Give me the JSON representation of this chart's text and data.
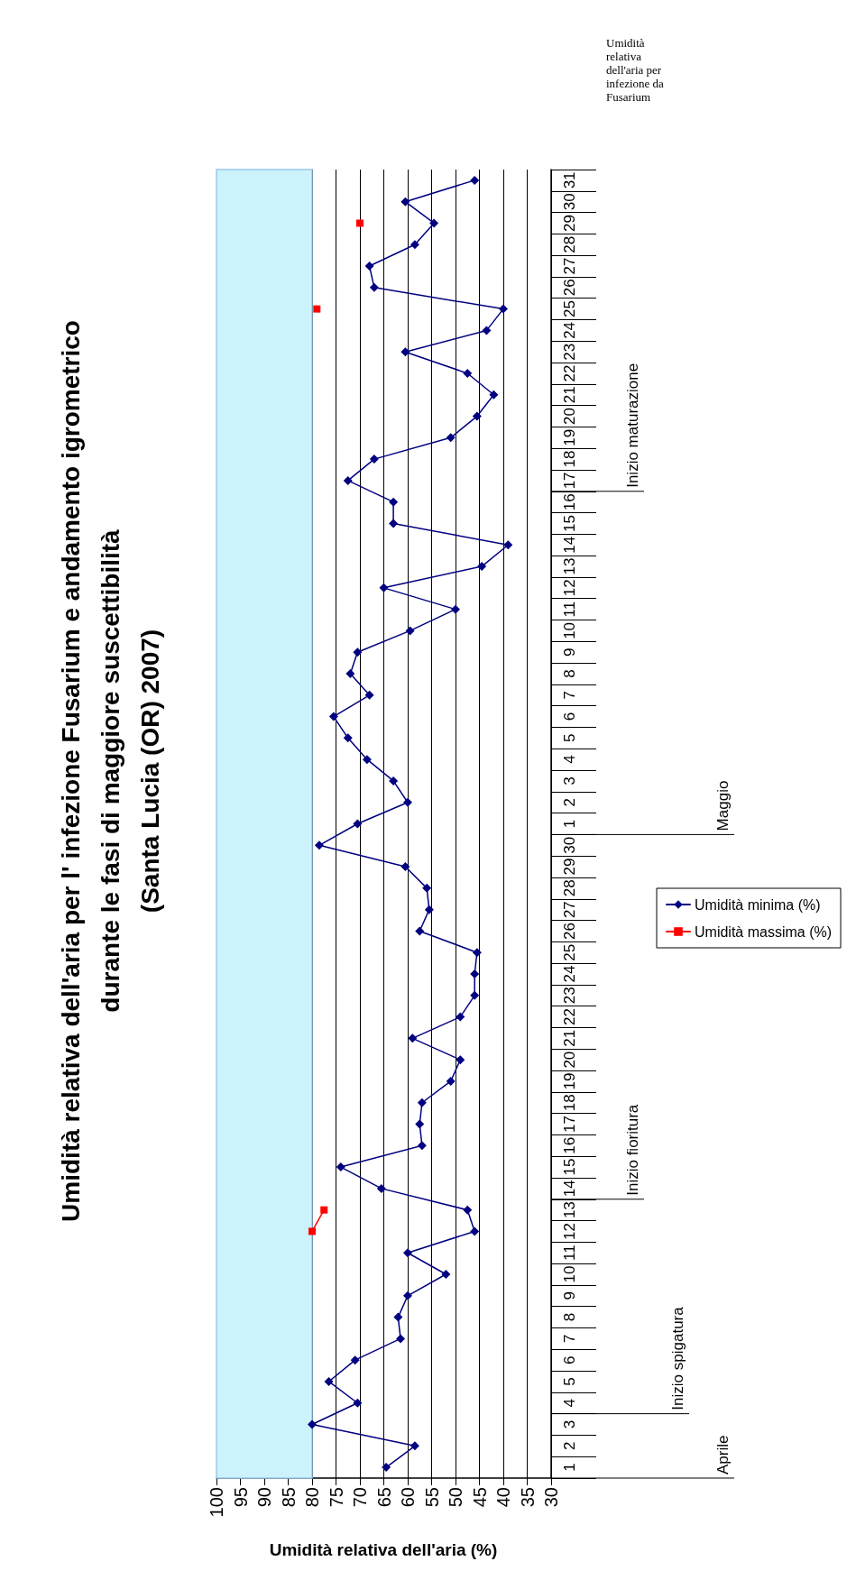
{
  "chart_data": {
    "type": "line",
    "orientation": "horizontal",
    "title": "Umidità relativa dell'aria per l' infezione Fusarium e andamento igrometrico\ndurante le fasi di maggiore suscettibilità\n(Santa Lucia (OR) 2007)",
    "xlabel": "Umidità relativa dell'aria (%)",
    "categories": [
      "31",
      "30",
      "29",
      "28",
      "27",
      "26",
      "25",
      "24",
      "23",
      "22",
      "21",
      "20",
      "19",
      "18",
      "17",
      "16",
      "15",
      "14",
      "13",
      "12",
      "11",
      "10",
      "9",
      "8",
      "7",
      "6",
      "5",
      "4",
      "3",
      "2",
      "1",
      "30",
      "29",
      "28",
      "27",
      "26",
      "25",
      "24",
      "23",
      "22",
      "21",
      "20",
      "19",
      "18",
      "17",
      "16",
      "15",
      "14",
      "13",
      "12",
      "11",
      "10",
      "9",
      "8",
      "7",
      "6",
      "5",
      "4",
      "3",
      "2",
      "1"
    ],
    "series": [
      {
        "name": "Umidità minima (%)",
        "color": "#000080",
        "marker": "diamond",
        "values": [
          46,
          60.5,
          54.5,
          58.5,
          68,
          67,
          40,
          43.5,
          60.5,
          47.5,
          42,
          45.5,
          51,
          67,
          72.5,
          63,
          63,
          39,
          44.5,
          65,
          50,
          59.5,
          70.5,
          72,
          68,
          75.5,
          72.5,
          68.5,
          63,
          60,
          70.5,
          78.5,
          60.5,
          56,
          55.5,
          57.5,
          45.5,
          46,
          46,
          49,
          59,
          49,
          51,
          57,
          57.5,
          57,
          74,
          65.5,
          47.5,
          46,
          60,
          52,
          60,
          62,
          61.5,
          71,
          76.5,
          70.5,
          80,
          58.5,
          64.5
        ]
      },
      {
        "name": "Umidità massima (%)",
        "color": "#ff0000",
        "marker": "square",
        "values": [
          null,
          null,
          70,
          null,
          null,
          null,
          79,
          null,
          null,
          null,
          null,
          null,
          null,
          null,
          null,
          null,
          null,
          null,
          null,
          null,
          null,
          null,
          null,
          null,
          null,
          null,
          null,
          null,
          null,
          null,
          null,
          null,
          null,
          null,
          null,
          null,
          null,
          null,
          null,
          null,
          null,
          null,
          null,
          null,
          null,
          null,
          null,
          null,
          77.5,
          80,
          null,
          null,
          null,
          null,
          null,
          null,
          null,
          null,
          null,
          null,
          null
        ]
      }
    ],
    "xlim": [
      100,
      30
    ],
    "xticks": [
      100,
      95,
      90,
      85,
      80,
      75,
      70,
      65,
      60,
      55,
      50,
      45,
      40,
      35,
      30
    ],
    "grid": "x",
    "legend": "right",
    "line_style": "solid",
    "bands": [
      {
        "axis": "x",
        "from": 80,
        "to": 100,
        "color": "#ccf2fc"
      }
    ],
    "annotations": [
      "Aprile",
      "Inizio spigatura",
      "Inizio fioritura",
      "Maggio",
      "Inizio maturazione",
      "Umidità relativa dell'aria per infezione da Fusarium"
    ]
  }
}
